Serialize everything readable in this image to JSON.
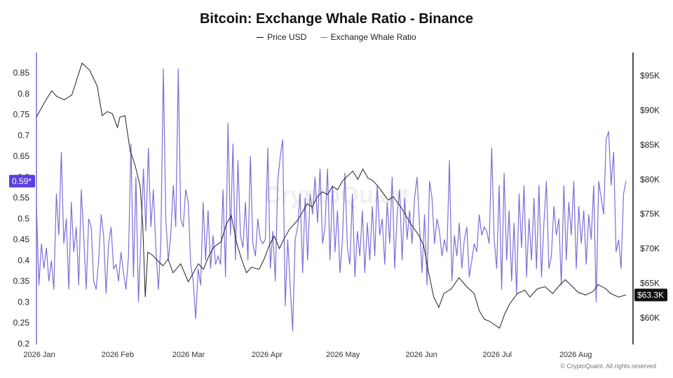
{
  "title": "Bitcoin: Exchange Whale Ratio - Binance",
  "watermark": "CryptoQuant",
  "copyright": "© CryptoQuant. All rights reserved",
  "legend": [
    {
      "label": "Price USD",
      "color": "#111111"
    },
    {
      "label": "Exchange Whale Ratio",
      "color": "#7a6fd6"
    }
  ],
  "colors": {
    "price": "#222222",
    "ratio": "#7a6fd6",
    "highlight": "#5b3fe0"
  },
  "chart_data": {
    "type": "line",
    "x_range": [
      "2026-01-01",
      "2026-08-22"
    ],
    "x_ticks": [
      "2026 Jan",
      "2026 Feb",
      "2026 Mar",
      "2026 Apr",
      "2026 May",
      "2026 Jun",
      "2026 Jul",
      "2026 Aug"
    ],
    "y_left": {
      "min": 0.2,
      "max": 0.9,
      "ticks": [
        "0.85",
        "0.8",
        "0.75",
        "0.7",
        "0.65",
        "0.6",
        "0.55",
        "0.5",
        "0.45",
        "0.4",
        "0.35",
        "0.3",
        "0.25",
        "0.2"
      ]
    },
    "y_right": {
      "min": 55000,
      "max": 100000,
      "ticks": [
        "$95K",
        "$90K",
        "$85K",
        "$80K",
        "$75K",
        "$70K",
        "$65K",
        "$60K"
      ]
    },
    "current_ratio_label": "0.59*",
    "current_ratio_value": 0.59,
    "current_price_label": "$63.3K",
    "current_price_value": 63300,
    "series": [
      {
        "name": "Price USD",
        "axis": "right",
        "points": [
          [
            "2026-01-01",
            89000
          ],
          [
            "2026-01-04",
            91000
          ],
          [
            "2026-01-07",
            92800
          ],
          [
            "2026-01-09",
            92000
          ],
          [
            "2026-01-12",
            91500
          ],
          [
            "2026-01-15",
            92200
          ],
          [
            "2026-01-17",
            94500
          ],
          [
            "2026-01-19",
            96800
          ],
          [
            "2026-01-22",
            95800
          ],
          [
            "2026-01-25",
            93500
          ],
          [
            "2026-01-27",
            89200
          ],
          [
            "2026-01-29",
            89800
          ],
          [
            "2026-01-31",
            89500
          ],
          [
            "2026-02-02",
            87500
          ],
          [
            "2026-02-03",
            89000
          ],
          [
            "2026-02-05",
            89200
          ],
          [
            "2026-02-07",
            84200
          ],
          [
            "2026-02-09",
            82000
          ],
          [
            "2026-02-11",
            79000
          ],
          [
            "2026-02-12",
            73500
          ],
          [
            "2026-02-13",
            63000
          ],
          [
            "2026-02-14",
            69500
          ],
          [
            "2026-02-16",
            69000
          ],
          [
            "2026-02-18",
            68200
          ],
          [
            "2026-02-20",
            67500
          ],
          [
            "2026-02-22",
            68500
          ],
          [
            "2026-02-24",
            66500
          ],
          [
            "2026-02-27",
            67800
          ],
          [
            "2026-03-02",
            65200
          ],
          [
            "2026-03-04",
            66500
          ],
          [
            "2026-03-06",
            67800
          ],
          [
            "2026-03-08",
            67000
          ],
          [
            "2026-03-10",
            68800
          ],
          [
            "2026-03-12",
            70200
          ],
          [
            "2026-03-15",
            71000
          ],
          [
            "2026-03-17",
            73500
          ],
          [
            "2026-03-19",
            74800
          ],
          [
            "2026-03-21",
            71000
          ],
          [
            "2026-03-23",
            68500
          ],
          [
            "2026-03-25",
            66500
          ],
          [
            "2026-03-27",
            67300
          ],
          [
            "2026-03-30",
            67000
          ],
          [
            "2026-04-01",
            68500
          ],
          [
            "2026-04-03",
            70500
          ],
          [
            "2026-04-05",
            71800
          ],
          [
            "2026-04-07",
            70000
          ],
          [
            "2026-04-09",
            71500
          ],
          [
            "2026-04-11",
            72800
          ],
          [
            "2026-04-14",
            74000
          ],
          [
            "2026-04-16",
            75200
          ],
          [
            "2026-04-18",
            76500
          ],
          [
            "2026-04-20",
            76000
          ],
          [
            "2026-04-22",
            77500
          ],
          [
            "2026-04-24",
            78200
          ],
          [
            "2026-04-26",
            77800
          ],
          [
            "2026-04-28",
            79000
          ],
          [
            "2026-04-30",
            78500
          ],
          [
            "2026-05-02",
            79800
          ],
          [
            "2026-05-04",
            80500
          ],
          [
            "2026-05-06",
            81200
          ],
          [
            "2026-05-08",
            80000
          ],
          [
            "2026-05-10",
            81500
          ],
          [
            "2026-05-12",
            80200
          ],
          [
            "2026-05-14",
            79800
          ],
          [
            "2026-05-16",
            79000
          ],
          [
            "2026-05-18",
            78000
          ],
          [
            "2026-05-20",
            77000
          ],
          [
            "2026-05-22",
            77500
          ],
          [
            "2026-05-25",
            76000
          ],
          [
            "2026-05-27",
            74800
          ],
          [
            "2026-05-29",
            73500
          ],
          [
            "2026-06-01",
            72000
          ],
          [
            "2026-06-03",
            70500
          ],
          [
            "2026-06-05",
            66500
          ],
          [
            "2026-06-07",
            63000
          ],
          [
            "2026-06-09",
            61500
          ],
          [
            "2026-06-11",
            63500
          ],
          [
            "2026-06-14",
            64200
          ],
          [
            "2026-06-17",
            65800
          ],
          [
            "2026-06-20",
            64500
          ],
          [
            "2026-06-23",
            63500
          ],
          [
            "2026-06-25",
            61000
          ],
          [
            "2026-06-27",
            59800
          ],
          [
            "2026-06-29",
            59500
          ],
          [
            "2026-07-01",
            59000
          ],
          [
            "2026-07-03",
            58500
          ],
          [
            "2026-07-05",
            60500
          ],
          [
            "2026-07-07",
            62000
          ],
          [
            "2026-07-10",
            63500
          ],
          [
            "2026-07-13",
            64000
          ],
          [
            "2026-07-15",
            63000
          ],
          [
            "2026-07-18",
            64200
          ],
          [
            "2026-07-21",
            64500
          ],
          [
            "2026-07-24",
            63500
          ],
          [
            "2026-07-27",
            64800
          ],
          [
            "2026-07-29",
            65500
          ],
          [
            "2026-07-31",
            64800
          ],
          [
            "2026-08-03",
            63700
          ],
          [
            "2026-08-06",
            63300
          ],
          [
            "2026-08-09",
            63800
          ],
          [
            "2026-08-11",
            64800
          ],
          [
            "2026-08-14",
            64200
          ],
          [
            "2026-08-16",
            63500
          ],
          [
            "2026-08-19",
            63000
          ],
          [
            "2026-08-22",
            63300
          ]
        ]
      },
      {
        "name": "Exchange Whale Ratio",
        "axis": "left",
        "values": [
          0.53,
          0.34,
          0.44,
          0.38,
          0.43,
          0.35,
          0.4,
          0.33,
          0.56,
          0.46,
          0.66,
          0.44,
          0.5,
          0.33,
          0.54,
          0.42,
          0.48,
          0.34,
          0.57,
          0.46,
          0.33,
          0.5,
          0.48,
          0.35,
          0.33,
          0.4,
          0.51,
          0.46,
          0.32,
          0.44,
          0.48,
          0.38,
          0.39,
          0.35,
          0.42,
          0.37,
          0.33,
          0.41,
          0.68,
          0.36,
          0.6,
          0.3,
          0.45,
          0.62,
          0.47,
          0.67,
          0.48,
          0.57,
          0.43,
          0.33,
          0.44,
          0.86,
          0.5,
          0.4,
          0.46,
          0.58,
          0.48,
          0.86,
          0.5,
          0.48,
          0.57,
          0.54,
          0.39,
          0.35,
          0.26,
          0.38,
          0.34,
          0.54,
          0.4,
          0.52,
          0.38,
          0.46,
          0.39,
          0.41,
          0.39,
          0.57,
          0.36,
          0.73,
          0.46,
          0.68,
          0.4,
          0.64,
          0.46,
          0.43,
          0.54,
          0.4,
          0.65,
          0.44,
          0.41,
          0.5,
          0.45,
          0.44,
          0.45,
          0.67,
          0.38,
          0.47,
          0.35,
          0.59,
          0.65,
          0.69,
          0.29,
          0.45,
          0.34,
          0.23,
          0.45,
          0.48,
          0.56,
          0.37,
          0.55,
          0.4,
          0.56,
          0.51,
          0.6,
          0.49,
          0.62,
          0.44,
          0.48,
          0.62,
          0.4,
          0.58,
          0.42,
          0.52,
          0.37,
          0.45,
          0.61,
          0.43,
          0.39,
          0.56,
          0.36,
          0.47,
          0.41,
          0.52,
          0.37,
          0.49,
          0.4,
          0.53,
          0.41,
          0.58,
          0.46,
          0.5,
          0.39,
          0.54,
          0.44,
          0.6,
          0.38,
          0.51,
          0.57,
          0.4,
          0.55,
          0.45,
          0.52,
          0.44,
          0.55,
          0.6,
          0.48,
          0.37,
          0.51,
          0.34,
          0.59,
          0.55,
          0.44,
          0.5,
          0.47,
          0.41,
          0.45,
          0.42,
          0.64,
          0.35,
          0.46,
          0.41,
          0.49,
          0.38,
          0.45,
          0.48,
          0.36,
          0.4,
          0.44,
          0.42,
          0.51,
          0.46,
          0.48,
          0.47,
          0.44,
          0.67,
          0.45,
          0.38,
          0.58,
          0.33,
          0.61,
          0.4,
          0.52,
          0.35,
          0.49,
          0.32,
          0.56,
          0.43,
          0.58,
          0.36,
          0.5,
          0.4,
          0.55,
          0.38,
          0.58,
          0.36,
          0.49,
          0.59,
          0.38,
          0.41,
          0.53,
          0.46,
          0.5,
          0.34,
          0.58,
          0.4,
          0.54,
          0.46,
          0.59,
          0.38,
          0.53,
          0.44,
          0.52,
          0.39,
          0.51,
          0.45,
          0.58,
          0.3,
          0.59,
          0.55,
          0.51,
          0.69,
          0.71,
          0.58,
          0.66,
          0.42,
          0.45,
          0.38,
          0.56,
          0.59
        ]
      }
    ]
  }
}
